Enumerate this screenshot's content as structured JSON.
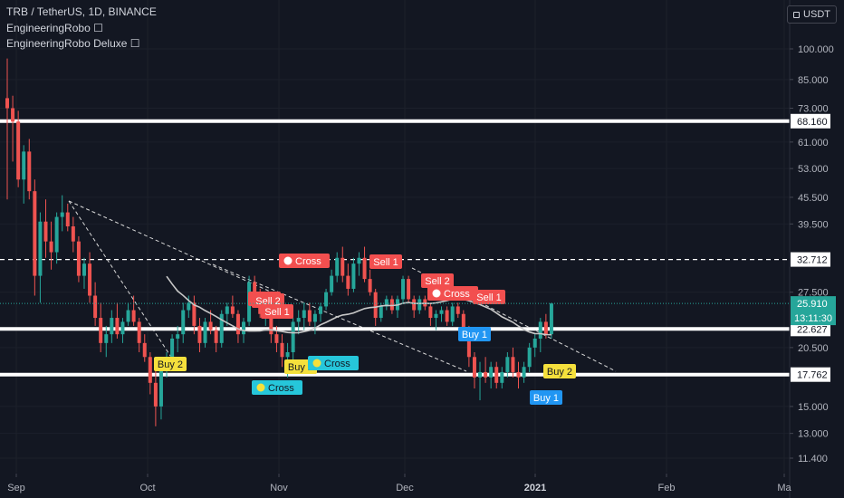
{
  "header": {
    "symbol_line": "TRB / TetherUS, 1D, BINANCE",
    "indicator_1": "EngineeringRobo",
    "indicator_2": "EngineeringRobo Deluxe",
    "currency": "USDT"
  },
  "colors": {
    "background": "#131722",
    "up_candle": "#26a69a",
    "down_candle": "#ef5350",
    "ma_line": "#c8c8c8",
    "sell_label": "#f24f4f",
    "buy_label": "#2196f3",
    "cross_label": "#26c6da",
    "buy2_label": "#f5e03c",
    "level_line": "#ffffff"
  },
  "chart_data": {
    "type": "candlestick",
    "y_scale": "log",
    "y_axis_ticks": [
      "100.000",
      "85.000",
      "73.000",
      "61.000",
      "53.000",
      "45.500",
      "39.500",
      "27.500",
      "20.500",
      "15.000",
      "13.000",
      "11.400"
    ],
    "x_axis_ticks": [
      "Sep",
      "Oct",
      "Nov",
      "Dec",
      "2021",
      "Feb",
      "Ma"
    ],
    "horizontal_levels": [
      {
        "value": 68.16,
        "label": "68.160",
        "style": "solid"
      },
      {
        "value": 32.712,
        "label": "32.712",
        "style": "dashed"
      },
      {
        "value": 22.627,
        "label": "22.627",
        "style": "solid"
      },
      {
        "value": 17.762,
        "label": "17.762",
        "style": "solid"
      }
    ],
    "last_price": {
      "value": 25.91,
      "label": "25.910",
      "countdown": "13:11:30"
    },
    "signals": [
      {
        "text": "Cross",
        "kind": "sell-cross"
      },
      {
        "text": "Sell 1",
        "kind": "sell"
      },
      {
        "text": "Sell 2",
        "kind": "sell"
      },
      {
        "text": "Sell 1",
        "kind": "sell"
      },
      {
        "text": "Sell 2",
        "kind": "sell"
      },
      {
        "text": "Cross",
        "kind": "sell-cross"
      },
      {
        "text": "Sell 1",
        "kind": "sell"
      },
      {
        "text": "Sell 1",
        "kind": "sell"
      },
      {
        "text": "Buy 2",
        "kind": "buy2"
      },
      {
        "text": "Buy 2",
        "kind": "buy2"
      },
      {
        "text": "Cross",
        "kind": "buy-cross"
      },
      {
        "text": "Cross",
        "kind": "buy-cross"
      },
      {
        "text": "Buy 1",
        "kind": "buy"
      },
      {
        "text": "Buy 1",
        "kind": "buy"
      },
      {
        "text": "Buy 2",
        "kind": "buy2"
      }
    ],
    "candles": [
      [
        77,
        95,
        45,
        73
      ],
      [
        73,
        78,
        55,
        68
      ],
      [
        68,
        72,
        48,
        50
      ],
      [
        50,
        60,
        44,
        58
      ],
      [
        58,
        62,
        45,
        47
      ],
      [
        47,
        50,
        27,
        30
      ],
      [
        30,
        42,
        26,
        40
      ],
      [
        40,
        45,
        33,
        36
      ],
      [
        36,
        40,
        31,
        34
      ],
      [
        34,
        42,
        32,
        41
      ],
      [
        41,
        46,
        38,
        42
      ],
      [
        42,
        44,
        38,
        39
      ],
      [
        39,
        41,
        34,
        36
      ],
      [
        36,
        37,
        29,
        30
      ],
      [
        30,
        33,
        28,
        32
      ],
      [
        32,
        34,
        26,
        27
      ],
      [
        27,
        29,
        23,
        24
      ],
      [
        24,
        26,
        20,
        21
      ],
      [
        21,
        23,
        19.5,
        22
      ],
      [
        22,
        25,
        21,
        24
      ],
      [
        24,
        26,
        21.5,
        22
      ],
      [
        22,
        24,
        21,
        23.5
      ],
      [
        23.5,
        26,
        23,
        25
      ],
      [
        25,
        27,
        23,
        23.5
      ],
      [
        23.5,
        24,
        20,
        21
      ],
      [
        21,
        22,
        19,
        19.5
      ],
      [
        19.5,
        20,
        16,
        17
      ],
      [
        17,
        18.5,
        13.5,
        15
      ],
      [
        15,
        19,
        14,
        18.5
      ],
      [
        18.5,
        20,
        17.5,
        19.5
      ],
      [
        19.5,
        22,
        19,
        21.5
      ],
      [
        21.5,
        23,
        20,
        22
      ],
      [
        22,
        26,
        21,
        25
      ],
      [
        25,
        27,
        24,
        26
      ],
      [
        26,
        27,
        22,
        23
      ],
      [
        23,
        24,
        20,
        21
      ],
      [
        21,
        24,
        20.5,
        23.5
      ],
      [
        23.5,
        25,
        22,
        22.5
      ],
      [
        22.5,
        23,
        20,
        21
      ],
      [
        21,
        25,
        20.5,
        24.5
      ],
      [
        24.5,
        26,
        23,
        25.5
      ],
      [
        25.5,
        27,
        24,
        24.5
      ],
      [
        24.5,
        25,
        21,
        22
      ],
      [
        22,
        24,
        21,
        23.5
      ],
      [
        23.5,
        30,
        23,
        29
      ],
      [
        29,
        30,
        26,
        27
      ],
      [
        27,
        28,
        24,
        24.5
      ],
      [
        24.5,
        26,
        23,
        25
      ],
      [
        25,
        26,
        21,
        22
      ],
      [
        22,
        23,
        20,
        21
      ],
      [
        21,
        22,
        18.5,
        19.5
      ],
      [
        19.5,
        21,
        17.5,
        20
      ],
      [
        20,
        24,
        19,
        23.5
      ],
      [
        23.5,
        25,
        22,
        24
      ],
      [
        24,
        26,
        22.5,
        25
      ],
      [
        25,
        26,
        23,
        23.5
      ],
      [
        23.5,
        25,
        22,
        24.5
      ],
      [
        24.5,
        26,
        23.5,
        25.5
      ],
      [
        25.5,
        28,
        25,
        27.5
      ],
      [
        27.5,
        31,
        27,
        30
      ],
      [
        30,
        34,
        29,
        33
      ],
      [
        33,
        35,
        29,
        30
      ],
      [
        30,
        32,
        27,
        28
      ],
      [
        28,
        33,
        27.5,
        32
      ],
      [
        32,
        34,
        30,
        33
      ],
      [
        33,
        35,
        29,
        29.5
      ],
      [
        29.5,
        31,
        27,
        27.5
      ],
      [
        27.5,
        28,
        23,
        24
      ],
      [
        24,
        26,
        23.5,
        25.5
      ],
      [
        25.5,
        27,
        25,
        26.5
      ],
      [
        26.5,
        27,
        24.5,
        25
      ],
      [
        25,
        27,
        24,
        26.5
      ],
      [
        26.5,
        30,
        26,
        29.5
      ],
      [
        29.5,
        30,
        26,
        26.5
      ],
      [
        26.5,
        27,
        24,
        25
      ],
      [
        25,
        27,
        24.5,
        26.5
      ],
      [
        26.5,
        27,
        25,
        25.5
      ],
      [
        25.5,
        26,
        23,
        24
      ],
      [
        24,
        25,
        22.5,
        24.5
      ],
      [
        24.5,
        25.5,
        23.5,
        25
      ],
      [
        25,
        25.5,
        23,
        23.5
      ],
      [
        23.5,
        26,
        23,
        25.5
      ],
      [
        25.5,
        26,
        24,
        24.5
      ],
      [
        24.5,
        25,
        22,
        22.5
      ],
      [
        22.5,
        23,
        18.5,
        19.5
      ],
      [
        19.5,
        20,
        16.5,
        17.5
      ],
      [
        17.5,
        19,
        15.5,
        18
      ],
      [
        18,
        19.5,
        17,
        17.5
      ],
      [
        17.5,
        19,
        16.5,
        18.5
      ],
      [
        18.5,
        19,
        16.5,
        17
      ],
      [
        17,
        18.5,
        16.5,
        18
      ],
      [
        18,
        20,
        17.5,
        19.5
      ],
      [
        19.5,
        20.5,
        17.5,
        18
      ],
      [
        18,
        19,
        16.5,
        17.5
      ],
      [
        17.5,
        19,
        17,
        18.5
      ],
      [
        18.5,
        21,
        18,
        20.5
      ],
      [
        20.5,
        22,
        19.5,
        21.5
      ],
      [
        21.5,
        24,
        20,
        23.5
      ],
      [
        23.5,
        24.5,
        21.5,
        22
      ],
      [
        22,
        26,
        21.5,
        25.9
      ]
    ]
  }
}
